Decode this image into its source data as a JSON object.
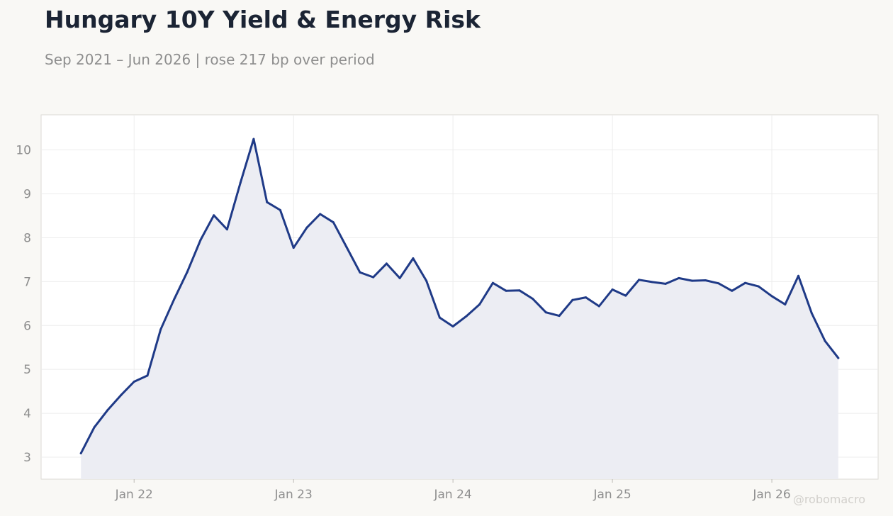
{
  "title": "Hungary 10Y Yield & Energy Risk",
  "subtitle": "Sep 2021 – Jun 2026 | rose 217 bp over period",
  "watermark": "@robomacro",
  "colors": {
    "background": "#f9f8f5",
    "plot_background": "#ffffff",
    "line": "#1f3a87",
    "fill": "#ecedf3",
    "grid": "#ececec",
    "axis_text": "#8e8e8e",
    "title": "#1b2434"
  },
  "chart_data": {
    "type": "area",
    "grid": true,
    "legend": "none",
    "x_range": [
      "2021-06",
      "2026-09"
    ],
    "ylim": [
      2.5,
      10.8
    ],
    "yticks": [
      3,
      4,
      5,
      6,
      7,
      8,
      9,
      10
    ],
    "xticks": [
      {
        "date": "2022-01",
        "label": "Jan 22"
      },
      {
        "date": "2023-01",
        "label": "Jan 23"
      },
      {
        "date": "2024-01",
        "label": "Jan 24"
      },
      {
        "date": "2025-01",
        "label": "Jan 25"
      },
      {
        "date": "2026-01",
        "label": "Jan 26"
      }
    ],
    "series": [
      {
        "x": [
          "2021-09",
          "2021-10",
          "2021-11",
          "2021-12",
          "2022-01",
          "2022-02",
          "2022-03",
          "2022-04",
          "2022-05",
          "2022-06",
          "2022-07",
          "2022-08",
          "2022-09",
          "2022-10",
          "2022-11",
          "2022-12",
          "2023-01",
          "2023-02",
          "2023-03",
          "2023-04",
          "2023-05",
          "2023-06",
          "2023-07",
          "2023-08",
          "2023-09",
          "2023-10",
          "2023-11",
          "2023-12",
          "2024-01",
          "2024-02",
          "2024-03",
          "2024-04",
          "2024-05",
          "2024-06",
          "2024-07",
          "2024-08",
          "2024-09",
          "2024-10",
          "2024-11",
          "2024-12",
          "2025-01",
          "2025-02",
          "2025-03",
          "2025-04",
          "2025-05",
          "2025-06",
          "2025-07",
          "2025-08",
          "2025-09",
          "2025-10",
          "2025-11",
          "2025-12",
          "2026-01",
          "2026-02",
          "2026-03",
          "2026-04",
          "2026-05",
          "2026-06"
        ],
        "values": [
          3.09,
          3.68,
          4.07,
          4.41,
          4.72,
          4.86,
          5.91,
          6.59,
          7.22,
          7.95,
          8.51,
          8.19,
          9.25,
          10.25,
          8.81,
          8.63,
          7.77,
          8.23,
          8.54,
          8.35,
          7.78,
          7.21,
          7.1,
          7.41,
          7.08,
          7.53,
          7.02,
          6.18,
          5.98,
          6.21,
          6.48,
          6.97,
          6.79,
          6.8,
          6.61,
          6.3,
          6.22,
          6.58,
          6.64,
          6.44,
          6.82,
          6.68,
          7.04,
          6.99,
          6.95,
          7.08,
          7.02,
          7.03,
          6.96,
          6.79,
          6.97,
          6.89,
          6.67,
          6.48,
          7.13,
          6.28,
          5.65,
          5.26
        ]
      }
    ]
  }
}
